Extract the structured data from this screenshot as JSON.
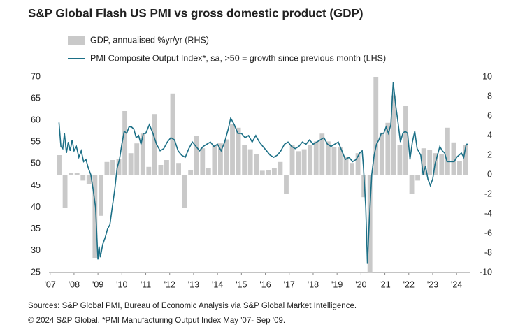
{
  "chart_data": {
    "type": "bar-line",
    "title": "S&P Global Flash US PMI vs gross domestic product (GDP)",
    "notes": [
      "Sources: S&P Global PMI, Bureau of Economic Analysis via S&P Global Market Intelligence.",
      "© 2024 S&P Global.  *PMI Manufacturing Output Index May '07- Sep '09."
    ],
    "xlim": [
      2006.95,
      2024.55
    ],
    "xticks": [
      {
        "value": 2007,
        "label": "'07"
      },
      {
        "value": 2008,
        "label": "'08"
      },
      {
        "value": 2009,
        "label": "'09"
      },
      {
        "value": 2010,
        "label": "'10"
      },
      {
        "value": 2011,
        "label": "'11"
      },
      {
        "value": 2012,
        "label": "'12"
      },
      {
        "value": 2013,
        "label": "'13"
      },
      {
        "value": 2014,
        "label": "'14"
      },
      {
        "value": 2015,
        "label": "'15"
      },
      {
        "value": 2016,
        "label": "'16"
      },
      {
        "value": 2017,
        "label": "'17"
      },
      {
        "value": 2018,
        "label": "'18"
      },
      {
        "value": 2019,
        "label": "'19"
      },
      {
        "value": 2020,
        "label": "'20"
      },
      {
        "value": 2021,
        "label": "'21"
      },
      {
        "value": 2022,
        "label": "'22"
      },
      {
        "value": 2023,
        "label": "'23"
      },
      {
        "value": 2024,
        "label": "'24"
      }
    ],
    "ylim": [
      25,
      70
    ],
    "yticks": [
      25,
      30,
      35,
      40,
      45,
      50,
      55,
      60,
      65,
      70
    ],
    "y2lim": [
      -10,
      10
    ],
    "y2ticks": [
      -10,
      -8,
      -6,
      -4,
      -2,
      0,
      2,
      4,
      6,
      8,
      10
    ],
    "series": [
      {
        "name": "GDP, annualised %yr/yr (RHS)",
        "type": "bar",
        "axis": "y2",
        "color": "#c9c9c9",
        "x": [
          2007.375,
          2007.625,
          2007.875,
          2008.125,
          2008.375,
          2008.625,
          2008.875,
          2009.125,
          2009.375,
          2009.625,
          2009.875,
          2010.125,
          2010.375,
          2010.625,
          2010.875,
          2011.125,
          2011.375,
          2011.625,
          2011.875,
          2012.125,
          2012.375,
          2012.625,
          2012.875,
          2013.125,
          2013.375,
          2013.625,
          2013.875,
          2014.125,
          2014.375,
          2014.625,
          2014.875,
          2015.125,
          2015.375,
          2015.625,
          2015.875,
          2016.125,
          2016.375,
          2016.625,
          2016.875,
          2017.125,
          2017.375,
          2017.625,
          2017.875,
          2018.125,
          2018.375,
          2018.625,
          2018.875,
          2019.125,
          2019.375,
          2019.625,
          2019.875,
          2020.125,
          2020.375,
          2020.625,
          2020.875,
          2021.125,
          2021.375,
          2021.625,
          2021.875,
          2022.125,
          2022.375,
          2022.625,
          2022.875,
          2023.125,
          2023.375,
          2023.625,
          2023.875,
          2024.125,
          2024.375
        ],
        "values": [
          2.0,
          -3.4,
          0.2,
          0.2,
          -0.6,
          -1.0,
          -8.5,
          -4.2,
          1.3,
          1.5,
          1.6,
          6.5,
          2.2,
          3.2,
          4.2,
          0.8,
          6.2,
          1.0,
          1.5,
          8.3,
          1.2,
          -3.4,
          0.5,
          4.0,
          2.7,
          0.7,
          3.0,
          3.2,
          3.6,
          5.2,
          4.8,
          3.0,
          2.6,
          2.1,
          0.4,
          0.5,
          0.7,
          1.3,
          -2.0,
          3.0,
          2.4,
          2.6,
          3.0,
          3.4,
          4.2,
          3.4,
          2.8,
          2.8,
          1.8,
          1.2,
          2.2,
          -2.3,
          -10,
          10,
          4.3,
          5.3,
          8.1,
          3.0,
          7.0,
          -2.0,
          -0.6,
          2.7,
          2.5,
          2.2,
          2.1,
          4.8,
          3.3,
          1.4,
          3.0
        ]
      },
      {
        "name": "PMI Composite Output Index*, sa, >50 = growth since previous month (LHS)",
        "type": "line",
        "axis": "y",
        "color": "#1b6f86",
        "x": [
          2007.37,
          2007.45,
          2007.53,
          2007.6,
          2007.68,
          2007.76,
          2007.84,
          2007.92,
          2008.0,
          2008.1,
          2008.2,
          2008.3,
          2008.4,
          2008.5,
          2008.6,
          2008.7,
          2008.8,
          2008.9,
          2009.0,
          2009.05,
          2009.1,
          2009.2,
          2009.3,
          2009.4,
          2009.5,
          2009.6,
          2009.7,
          2009.8,
          2009.9,
          2010.0,
          2010.1,
          2010.2,
          2010.3,
          2010.4,
          2010.5,
          2010.6,
          2010.7,
          2010.8,
          2010.9,
          2011.0,
          2011.15,
          2011.3,
          2011.45,
          2011.6,
          2011.75,
          2011.9,
          2012.05,
          2012.2,
          2012.35,
          2012.5,
          2012.65,
          2012.8,
          2012.95,
          2013.1,
          2013.25,
          2013.4,
          2013.55,
          2013.7,
          2013.85,
          2014.0,
          2014.15,
          2014.3,
          2014.45,
          2014.55,
          2014.7,
          2014.85,
          2015.0,
          2015.15,
          2015.3,
          2015.45,
          2015.6,
          2015.75,
          2015.9,
          2016.05,
          2016.2,
          2016.35,
          2016.5,
          2016.65,
          2016.8,
          2016.95,
          2017.1,
          2017.25,
          2017.4,
          2017.55,
          2017.7,
          2017.85,
          2018.0,
          2018.15,
          2018.3,
          2018.45,
          2018.6,
          2018.75,
          2018.9,
          2019.05,
          2019.2,
          2019.35,
          2019.5,
          2019.65,
          2019.8,
          2019.95,
          2020.05,
          2020.1,
          2020.2,
          2020.27,
          2020.35,
          2020.45,
          2020.55,
          2020.65,
          2020.75,
          2020.85,
          2020.95,
          2021.05,
          2021.15,
          2021.25,
          2021.35,
          2021.45,
          2021.55,
          2021.65,
          2021.75,
          2021.85,
          2021.95,
          2022.05,
          2022.15,
          2022.25,
          2022.35,
          2022.5,
          2022.6,
          2022.7,
          2022.8,
          2022.9,
          2023.0,
          2023.1,
          2023.2,
          2023.3,
          2023.4,
          2023.5,
          2023.6,
          2023.75,
          2023.9,
          2024.0,
          2024.1,
          2024.2,
          2024.3,
          2024.4,
          2024.48
        ],
        "values": [
          59.5,
          54,
          53.5,
          57,
          52.5,
          55,
          53,
          55.5,
          53,
          54,
          51.5,
          53,
          50.5,
          51,
          49,
          47.5,
          44,
          40,
          28,
          31,
          28.5,
          31.5,
          33,
          35,
          36,
          40,
          44,
          49,
          51,
          54.5,
          57.5,
          57,
          58.5,
          58.5,
          58,
          56,
          56.5,
          54.5,
          57,
          57,
          59,
          57,
          54.5,
          53,
          53.5,
          55,
          56,
          55.5,
          53,
          52,
          51.5,
          53.5,
          55,
          54,
          53,
          54,
          54.5,
          55,
          54,
          54.5,
          53,
          55,
          58,
          60.5,
          59,
          57,
          57,
          56,
          56.5,
          55,
          56.5,
          55,
          54,
          53,
          52,
          51.5,
          52,
          53,
          54.5,
          55,
          54,
          53.5,
          54,
          55,
          54.5,
          55.5,
          54.5,
          55,
          55.5,
          56,
          54.5,
          54,
          54.5,
          55,
          53,
          51,
          51.5,
          50.5,
          51,
          52.5,
          53,
          49.5,
          40,
          27,
          37,
          47.5,
          52,
          54.5,
          55.5,
          57,
          57,
          58.5,
          57,
          59,
          68.7,
          63.5,
          59.5,
          55,
          57,
          57.5,
          57,
          51,
          55,
          57.5,
          53.5,
          52,
          47.5,
          49.5,
          46.5,
          45,
          46.5,
          50,
          52,
          54,
          53,
          52.5,
          50.5,
          50.5,
          50.5,
          51.5,
          52,
          52.5,
          51.5,
          54.5,
          54.5
        ]
      }
    ]
  }
}
